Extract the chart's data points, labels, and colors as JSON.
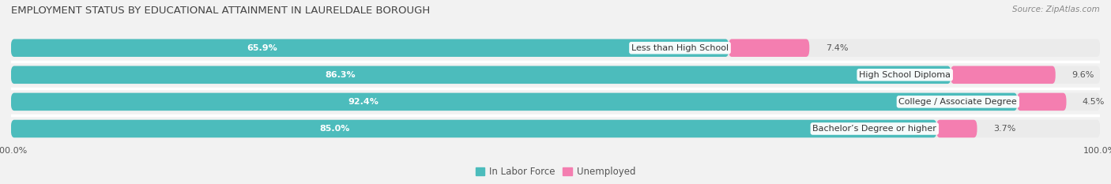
{
  "title": "EMPLOYMENT STATUS BY EDUCATIONAL ATTAINMENT IN LAURELDALE BOROUGH",
  "source": "Source: ZipAtlas.com",
  "categories": [
    "Less than High School",
    "High School Diploma",
    "College / Associate Degree",
    "Bachelor’s Degree or higher"
  ],
  "labor_force": [
    65.9,
    86.3,
    92.4,
    85.0
  ],
  "unemployed": [
    7.4,
    9.6,
    4.5,
    3.7
  ],
  "labor_force_color": "#4CBCBC",
  "unemployed_color": "#F47EB0",
  "background_color": "#f2f2f2",
  "bar_bg_color": "#e0e0e0",
  "title_fontsize": 9.5,
  "label_fontsize": 8.5,
  "value_fontsize": 8.0,
  "tick_fontsize": 8,
  "bar_height": 0.62,
  "xlim": 100.0,
  "legend_labels": [
    "In Labor Force",
    "Unemployed"
  ],
  "row_bg_color": "#ebebeb",
  "separator_color": "#ffffff"
}
